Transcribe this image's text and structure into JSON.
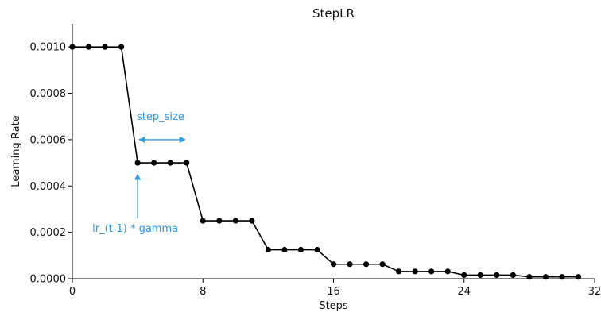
{
  "chart_data": {
    "type": "line",
    "title": "StepLR",
    "xlabel": "Steps",
    "ylabel": "Learning Rate",
    "xlim": [
      0,
      32
    ],
    "ylim": [
      0,
      0.0011
    ],
    "x_ticks": [
      0,
      8,
      16,
      24,
      32
    ],
    "x_tick_labels": [
      "0",
      "8",
      "16",
      "24",
      "32"
    ],
    "y_ticks": [
      0,
      0.0002,
      0.0004,
      0.0006,
      0.0008,
      0.001
    ],
    "y_tick_labels": [
      "0.0000",
      "0.0002",
      "0.0004",
      "0.0006",
      "0.0008",
      "0.0010"
    ],
    "grid": false,
    "series": [
      {
        "x": [
          0,
          1,
          2,
          3,
          4,
          5,
          6,
          7,
          8,
          9,
          10,
          11,
          12,
          13,
          14,
          15,
          16,
          17,
          18,
          19,
          20,
          21,
          22,
          23,
          24,
          25,
          26,
          27,
          28,
          29,
          30,
          31
        ],
        "values": [
          0.001,
          0.001,
          0.001,
          0.001,
          0.0005,
          0.0005,
          0.0005,
          0.0005,
          0.00025,
          0.00025,
          0.00025,
          0.00025,
          0.000125,
          0.000125,
          0.000125,
          0.000125,
          6.25e-05,
          6.25e-05,
          6.25e-05,
          6.25e-05,
          3.125e-05,
          3.125e-05,
          3.125e-05,
          3.125e-05,
          1.5625e-05,
          1.5625e-05,
          1.5625e-05,
          1.5625e-05,
          7.8125e-06,
          7.8125e-06,
          7.8125e-06,
          7.8125e-06
        ],
        "color": "#000000"
      }
    ],
    "annotations": [
      {
        "text": "step_size",
        "color": "#2b9ae0",
        "arrow": "double-horizontal",
        "from": [
          4,
          0.0006
        ],
        "to": [
          7,
          0.0006
        ]
      },
      {
        "text": "lr_(t-1) * gamma",
        "color": "#2b9ae0",
        "arrow": "up",
        "from": [
          4,
          0.00026
        ],
        "to": [
          4,
          0.00045
        ]
      }
    ]
  }
}
